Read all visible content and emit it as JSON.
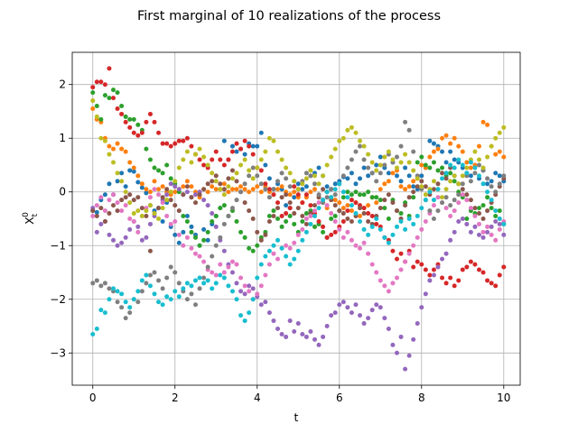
{
  "chart_data": {
    "type": "scatter",
    "title": "First marginal of 10 realizations of the process",
    "xlabel": "t",
    "ylabel_main": "X",
    "ylabel_sub": "t",
    "ylabel_sup": "0",
    "xlim": [
      -0.5,
      10.4
    ],
    "ylim": [
      -3.6,
      2.6
    ],
    "xticks": [
      0,
      2,
      4,
      6,
      8,
      10
    ],
    "yticks": [
      -3,
      -2,
      -1,
      0,
      1,
      2
    ],
    "grid": true,
    "marker_size": 5,
    "x": [
      0.0,
      0.1,
      0.2,
      0.3,
      0.4,
      0.5,
      0.6,
      0.7,
      0.8,
      0.9,
      1.0,
      1.1,
      1.2,
      1.3,
      1.4,
      1.5,
      1.6,
      1.7,
      1.8,
      1.9,
      2.0,
      2.1,
      2.2,
      2.3,
      2.4,
      2.5,
      2.6,
      2.7,
      2.8,
      2.9,
      3.0,
      3.1,
      3.2,
      3.3,
      3.4,
      3.5,
      3.6,
      3.7,
      3.8,
      3.9,
      4.0,
      4.1,
      4.2,
      4.3,
      4.4,
      4.5,
      4.6,
      4.7,
      4.8,
      4.9,
      5.0,
      5.1,
      5.2,
      5.3,
      5.4,
      5.5,
      5.6,
      5.7,
      5.8,
      5.9,
      6.0,
      6.1,
      6.2,
      6.3,
      6.4,
      6.5,
      6.6,
      6.7,
      6.8,
      6.9,
      7.0,
      7.1,
      7.2,
      7.3,
      7.4,
      7.5,
      7.6,
      7.7,
      7.8,
      7.9,
      8.0,
      8.1,
      8.2,
      8.3,
      8.4,
      8.5,
      8.6,
      8.7,
      8.8,
      8.9,
      9.0,
      9.1,
      9.2,
      9.3,
      9.4,
      9.5,
      9.6,
      9.7,
      9.8,
      9.9,
      10.0
    ],
    "series": [
      {
        "color": "#1f77b4",
        "values": [
          -0.35,
          -0.38,
          -0.15,
          -0.05,
          0.15,
          -0.05,
          0.2,
          0.35,
          0.1,
          0.4,
          0.38,
          0.18,
          0.08,
          -0.02,
          -0.25,
          -0.35,
          -0.3,
          -0.55,
          -0.2,
          -0.65,
          -0.8,
          -0.95,
          -0.75,
          -0.45,
          -0.65,
          -0.8,
          -1.0,
          -0.7,
          -0.9,
          -0.6,
          -0.45,
          -0.3,
          0.95,
          0.6,
          0.85,
          0.75,
          0.8,
          0.7,
          0.9,
          0.85,
          0.85,
          1.1,
          0.5,
          0.25,
          0.05,
          0.15,
          0.05,
          -0.25,
          -0.3,
          -0.1,
          0.15,
          0.05,
          0.1,
          0.3,
          0.35,
          0.45,
          0.3,
          0.1,
          0.05,
          0.15,
          0.2,
          0.28,
          0.25,
          0.35,
          0.15,
          0.25,
          0.45,
          0.3,
          0.35,
          0.5,
          0.65,
          0.45,
          0.35,
          0.55,
          0.3,
          0.2,
          0.45,
          0.3,
          0.1,
          0.05,
          0.3,
          0.45,
          0.95,
          0.9,
          0.85,
          0.75,
          0.55,
          0.75,
          0.6,
          0.55,
          0.45,
          0.35,
          0.3,
          0.5,
          0.25,
          0.4,
          0.15,
          0.2,
          0.35,
          0.3,
          0.2
        ]
      },
      {
        "color": "#ff7f0e",
        "values": [
          1.55,
          1.35,
          1.3,
          1.0,
          0.85,
          0.8,
          0.9,
          0.8,
          0.75,
          0.55,
          0.45,
          0.3,
          0.15,
          0.05,
          0.0,
          0.2,
          0.05,
          0.1,
          0.0,
          -0.05,
          0.0,
          0.05,
          0.1,
          0.2,
          0.1,
          0.0,
          -0.1,
          0.05,
          0.0,
          0.1,
          0.05,
          0.05,
          0.15,
          0.0,
          0.05,
          0.05,
          0.1,
          0.05,
          0.0,
          0.05,
          0.1,
          0.0,
          0.1,
          0.0,
          -0.05,
          0.05,
          0.1,
          0.0,
          -0.05,
          0.0,
          -0.1,
          -0.2,
          -0.1,
          0.0,
          0.05,
          -0.1,
          -0.2,
          -0.3,
          -0.1,
          -0.15,
          -0.2,
          -0.3,
          -0.25,
          -0.35,
          -0.2,
          -0.45,
          -0.3,
          -0.25,
          -0.1,
          -0.2,
          0.05,
          0.15,
          0.2,
          0.35,
          0.4,
          0.1,
          0.05,
          0.1,
          0.2,
          0.25,
          0.5,
          0.45,
          0.65,
          0.75,
          0.8,
          1.0,
          1.05,
          0.9,
          1.0,
          0.85,
          0.75,
          0.55,
          0.45,
          0.5,
          0.85,
          1.3,
          1.25,
          0.85,
          0.7,
          0.75,
          0.65
        ]
      },
      {
        "color": "#2ca02c",
        "values": [
          1.85,
          1.6,
          1.35,
          1.8,
          1.75,
          1.9,
          1.85,
          1.6,
          1.4,
          1.35,
          1.35,
          1.25,
          1.15,
          0.8,
          0.6,
          0.45,
          0.4,
          0.35,
          0.5,
          0.25,
          0.15,
          0.0,
          -0.45,
          -0.55,
          -0.75,
          -0.85,
          -1.0,
          -0.9,
          -0.75,
          -0.55,
          -0.45,
          -0.3,
          -0.25,
          -0.45,
          -0.35,
          -0.55,
          -0.75,
          -0.85,
          -1.05,
          -1.1,
          -1.0,
          -0.85,
          -0.75,
          -0.45,
          -0.35,
          -0.5,
          -0.65,
          -0.55,
          -0.45,
          -0.6,
          -0.75,
          -0.55,
          -0.4,
          -0.35,
          -0.65,
          -0.6,
          -0.75,
          -0.85,
          -0.5,
          -0.45,
          -0.35,
          -0.1,
          0.0,
          -0.05,
          0.0,
          -0.05,
          -0.05,
          0.0,
          -0.1,
          -0.1,
          -0.15,
          -0.3,
          -0.5,
          -0.15,
          -0.35,
          -0.4,
          -0.2,
          -0.45,
          -0.1,
          0.55,
          0.65,
          0.5,
          0.45,
          0.55,
          0.4,
          0.45,
          0.3,
          0.35,
          0.2,
          0.0,
          -0.1,
          -0.5,
          -0.35,
          -0.4,
          -0.3,
          -0.25,
          -0.1,
          -0.3,
          -0.45,
          -0.35,
          -0.6
        ]
      },
      {
        "color": "#d62728",
        "values": [
          1.95,
          2.05,
          2.05,
          2.0,
          2.3,
          1.75,
          1.55,
          1.45,
          1.3,
          1.2,
          1.1,
          1.05,
          1.1,
          1.3,
          1.45,
          1.3,
          1.1,
          0.9,
          0.9,
          0.85,
          0.9,
          0.95,
          0.95,
          1.0,
          0.85,
          0.7,
          0.6,
          0.5,
          0.45,
          0.6,
          0.75,
          0.6,
          0.5,
          0.6,
          0.75,
          0.9,
          0.8,
          0.95,
          0.85,
          0.7,
          0.45,
          0.4,
          0.15,
          0.05,
          -0.05,
          -0.2,
          -0.45,
          -0.4,
          -0.3,
          0.1,
          -0.05,
          -0.2,
          -0.05,
          -0.25,
          -0.4,
          -0.55,
          -0.65,
          -0.85,
          -0.8,
          -0.75,
          -0.65,
          -0.55,
          -0.35,
          -0.15,
          -0.2,
          -0.25,
          -0.3,
          -0.4,
          -0.45,
          -0.6,
          -0.65,
          -0.85,
          -0.9,
          -1.1,
          -1.25,
          -1.15,
          -1.3,
          -1.1,
          -1.4,
          -1.3,
          -1.35,
          -1.45,
          -1.55,
          -1.45,
          -1.35,
          -1.6,
          -1.7,
          -1.6,
          -1.75,
          -1.65,
          -1.45,
          -1.4,
          -1.3,
          -1.35,
          -1.45,
          -1.5,
          -1.65,
          -1.7,
          -1.75,
          -1.55,
          -1.4
        ]
      },
      {
        "color": "#9467bd",
        "values": [
          -0.3,
          -0.75,
          -0.6,
          -0.55,
          -0.8,
          -0.9,
          -1.0,
          -0.95,
          -0.85,
          -0.7,
          -0.55,
          -0.65,
          -0.9,
          -0.85,
          -0.6,
          -0.45,
          -0.3,
          -0.15,
          -0.05,
          0.15,
          0.1,
          0.05,
          -0.05,
          0.0,
          -0.1,
          -0.05,
          0.0,
          -0.15,
          -0.25,
          -0.4,
          -0.65,
          -0.9,
          -1.1,
          -1.35,
          -1.5,
          -1.7,
          -1.85,
          -1.9,
          -1.75,
          -1.8,
          -1.95,
          -2.1,
          -2.05,
          -2.25,
          -2.4,
          -2.55,
          -2.65,
          -2.7,
          -2.4,
          -2.6,
          -2.45,
          -2.65,
          -2.7,
          -2.6,
          -2.75,
          -2.85,
          -2.7,
          -2.5,
          -2.3,
          -2.25,
          -2.1,
          -2.05,
          -2.15,
          -2.25,
          -2.1,
          -2.3,
          -2.45,
          -2.35,
          -2.2,
          -2.1,
          -2.15,
          -2.35,
          -2.55,
          -2.85,
          -3.0,
          -2.7,
          -3.3,
          -3.05,
          -2.75,
          -2.45,
          -2.15,
          -1.9,
          -1.65,
          -1.55,
          -1.4,
          -1.25,
          -1.15,
          -0.9,
          -0.75,
          -0.55,
          -0.5,
          -0.6,
          -0.75,
          -0.65,
          -0.8,
          -0.85,
          -0.75,
          -0.65,
          -0.55,
          -0.6,
          -0.8
        ]
      },
      {
        "color": "#8c564b",
        "values": [
          -0.35,
          -0.45,
          -0.3,
          -0.55,
          -0.4,
          -0.25,
          -0.35,
          -0.15,
          -0.1,
          -0.05,
          -0.15,
          -0.1,
          -0.3,
          -0.45,
          -1.1,
          -0.4,
          -0.3,
          -0.1,
          0.05,
          -0.15,
          -0.25,
          -0.35,
          -0.05,
          0.1,
          -0.1,
          -0.2,
          -0.05,
          0.05,
          0.15,
          0.2,
          0.3,
          0.15,
          0.05,
          0.25,
          0.4,
          0.2,
          0.0,
          -0.2,
          -0.35,
          -0.5,
          -0.75,
          -0.9,
          -0.8,
          -0.55,
          -0.45,
          -0.3,
          -0.1,
          -0.05,
          -0.2,
          -0.4,
          -0.3,
          -0.45,
          -0.6,
          -0.4,
          -0.25,
          -0.1,
          0.05,
          0.0,
          -0.15,
          -0.25,
          -0.35,
          -0.4,
          -0.5,
          -0.55,
          -0.45,
          -0.3,
          -0.4,
          -0.55,
          -0.6,
          -0.45,
          -0.3,
          -0.15,
          -0.05,
          -0.2,
          -0.35,
          -0.5,
          -0.25,
          -0.1,
          0.0,
          0.1,
          0.2,
          0.1,
          -0.05,
          0.05,
          0.15,
          0.35,
          0.25,
          0.45,
          0.3,
          0.15,
          0.05,
          -0.05,
          -0.15,
          -0.3,
          -0.4,
          -0.5,
          -0.35,
          -0.2,
          -0.05,
          0.1,
          0.25
        ]
      },
      {
        "color": "#e377c2",
        "values": [
          -0.45,
          -0.25,
          -0.1,
          -0.35,
          -0.15,
          -0.05,
          -0.2,
          -0.35,
          -0.25,
          -0.5,
          -0.55,
          -0.75,
          -0.45,
          -0.3,
          -0.1,
          0.05,
          -0.05,
          -0.2,
          -0.45,
          -0.6,
          -0.55,
          -0.8,
          -1.0,
          -0.85,
          -1.05,
          -1.15,
          -1.2,
          -1.3,
          -1.45,
          -1.5,
          -1.55,
          -1.35,
          -1.5,
          -1.4,
          -1.3,
          -1.35,
          -1.6,
          -1.75,
          -1.85,
          -2.0,
          -1.9,
          -1.75,
          -1.55,
          -1.35,
          -1.15,
          -1.25,
          -1.05,
          -1.0,
          -1.05,
          -0.95,
          -0.8,
          -0.7,
          -0.5,
          -0.45,
          -0.35,
          -0.2,
          -0.15,
          -0.25,
          -0.4,
          -0.55,
          -0.7,
          -0.85,
          -0.75,
          -0.9,
          -1.0,
          -1.05,
          -0.95,
          -1.15,
          -1.35,
          -1.5,
          -1.65,
          -1.75,
          -1.85,
          -1.7,
          -1.6,
          -1.45,
          -1.3,
          -1.15,
          -1.0,
          -0.85,
          -0.7,
          -0.55,
          -0.4,
          -0.25,
          -0.1,
          -0.2,
          -0.3,
          -0.45,
          -0.35,
          -0.2,
          -0.05,
          -0.15,
          -0.3,
          -0.45,
          -0.6,
          -0.75,
          -0.65,
          -0.8,
          -0.9,
          -0.7,
          -0.55
        ]
      },
      {
        "color": "#7f7f7f",
        "values": [
          -1.7,
          -1.65,
          -1.75,
          -1.7,
          -1.8,
          -1.85,
          -2.05,
          -2.15,
          -2.35,
          -2.25,
          -2.0,
          -2.05,
          -1.85,
          -1.7,
          -1.55,
          -1.5,
          -1.65,
          -1.8,
          -1.6,
          -1.4,
          -1.5,
          -1.7,
          -1.85,
          -2.0,
          -1.9,
          -2.1,
          -1.8,
          -1.6,
          -1.4,
          -1.2,
          -1.0,
          -0.85,
          -0.6,
          -0.45,
          -0.3,
          -0.15,
          0.0,
          0.15,
          0.3,
          0.45,
          0.3,
          0.15,
          0.05,
          -0.1,
          0.05,
          0.2,
          0.35,
          0.25,
          0.1,
          0.2,
          0.05,
          0.2,
          0.35,
          0.3,
          0.15,
          -0.05,
          -0.2,
          -0.1,
          0.05,
          -0.05,
          0.15,
          0.3,
          0.45,
          0.6,
          0.75,
          0.85,
          0.6,
          0.45,
          0.35,
          0.2,
          0.35,
          0.5,
          0.7,
          0.55,
          0.65,
          0.85,
          1.3,
          1.15,
          0.75,
          0.3,
          0.05,
          -0.15,
          -0.35,
          -0.5,
          -0.35,
          -0.2,
          -0.1,
          -0.25,
          -0.15,
          -0.05,
          0.15,
          0.3,
          0.2,
          0.35,
          0.5,
          0.4,
          0.25,
          0.1,
          0.0,
          0.15,
          0.3
        ]
      },
      {
        "color": "#bcbd22",
        "values": [
          1.7,
          1.4,
          1.0,
          0.95,
          0.7,
          0.55,
          0.35,
          0.2,
          0.0,
          -0.2,
          -0.4,
          -0.35,
          -0.45,
          -0.35,
          -0.25,
          -0.4,
          -0.5,
          -0.3,
          -0.15,
          0.0,
          0.2,
          0.45,
          0.6,
          0.75,
          0.55,
          0.7,
          0.8,
          0.65,
          0.5,
          0.35,
          0.2,
          0.05,
          -0.05,
          0.1,
          0.25,
          0.35,
          0.5,
          0.6,
          0.4,
          0.25,
          0.45,
          0.6,
          0.75,
          1.0,
          0.95,
          0.75,
          0.6,
          0.45,
          0.35,
          0.2,
          0.05,
          0.15,
          0.25,
          0.4,
          0.3,
          0.15,
          0.3,
          0.5,
          0.65,
          0.8,
          0.95,
          1.0,
          1.15,
          1.2,
          1.1,
          0.95,
          0.85,
          0.7,
          0.55,
          0.4,
          0.5,
          0.65,
          0.75,
          0.6,
          0.45,
          0.55,
          0.7,
          0.55,
          0.4,
          0.25,
          0.1,
          -0.05,
          0.05,
          0.2,
          0.05,
          -0.1,
          0.05,
          0.2,
          0.3,
          0.15,
          0.3,
          0.45,
          0.6,
          0.75,
          0.6,
          0.45,
          0.65,
          0.85,
          1.0,
          1.1,
          1.2
        ]
      },
      {
        "color": "#17becf",
        "values": [
          -2.65,
          -2.55,
          -2.2,
          -2.25,
          -2.0,
          -1.8,
          -1.85,
          -1.9,
          -2.05,
          -2.15,
          -2.0,
          -1.85,
          -1.65,
          -1.55,
          -1.75,
          -1.9,
          -2.05,
          -2.1,
          -1.95,
          -2.0,
          -1.85,
          -1.95,
          -1.8,
          -1.7,
          -1.75,
          -1.65,
          -1.6,
          -1.7,
          -1.65,
          -1.8,
          -1.7,
          -1.55,
          -1.6,
          -1.75,
          -1.85,
          -2.0,
          -2.3,
          -2.4,
          -2.25,
          -2.0,
          -1.6,
          -1.35,
          -1.2,
          -1.1,
          -1.0,
          -0.9,
          -1.05,
          -1.2,
          -1.35,
          -1.25,
          -1.1,
          -0.9,
          -0.75,
          -0.6,
          -0.45,
          -0.3,
          -0.15,
          0.0,
          -0.1,
          0.05,
          0.15,
          0.0,
          -0.1,
          -0.25,
          -0.4,
          -0.55,
          -0.7,
          -0.8,
          -0.65,
          -0.5,
          -0.7,
          -0.85,
          -0.95,
          -0.8,
          -0.65,
          -0.55,
          -0.7,
          -0.5,
          -0.6,
          -0.45,
          -0.3,
          -0.15,
          0.0,
          -0.15,
          0.05,
          0.25,
          0.35,
          0.5,
          0.45,
          0.6,
          0.5,
          0.35,
          0.55,
          0.45,
          0.3,
          0.15,
          0.0,
          -0.15,
          -0.35,
          -0.5,
          -0.6
        ]
      }
    ]
  }
}
